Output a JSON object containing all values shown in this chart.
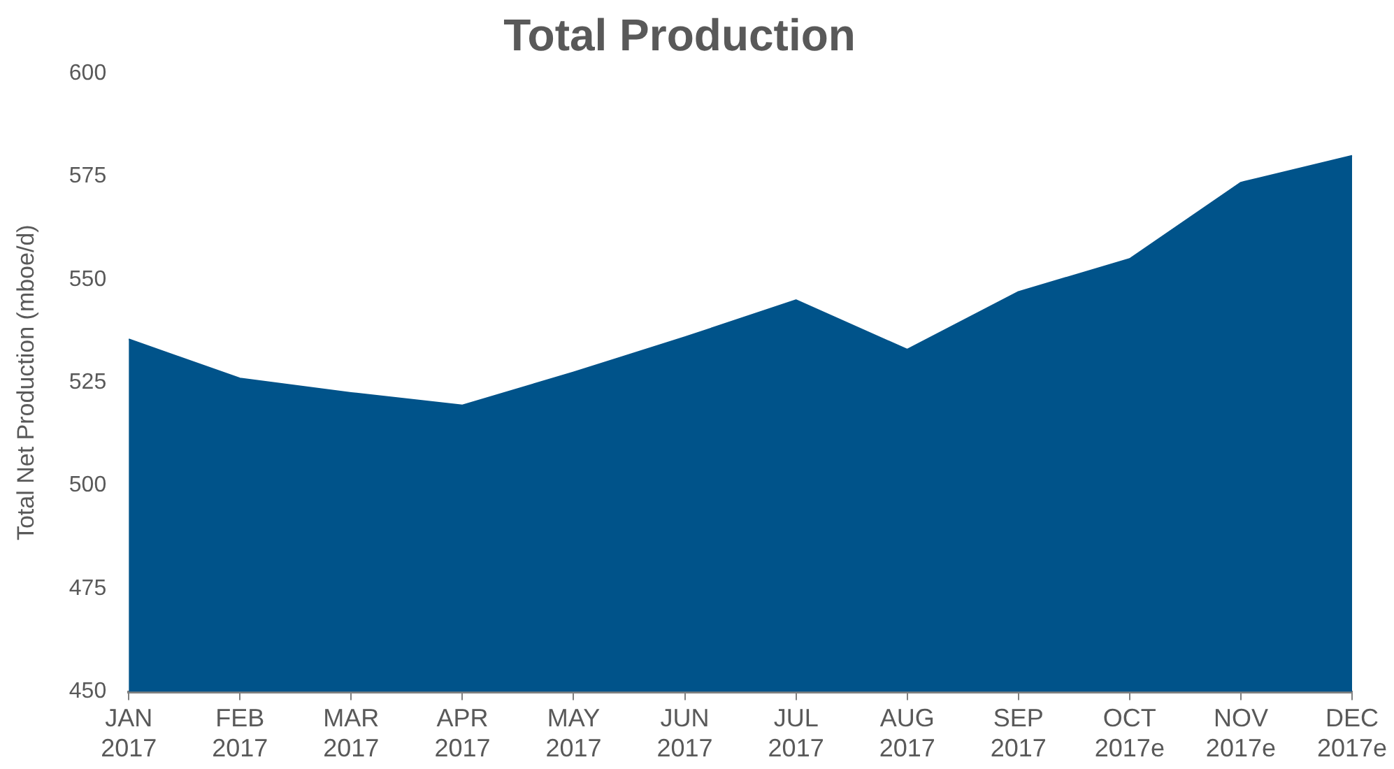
{
  "chart_data": {
    "type": "area",
    "title": "Total Production",
    "ylabel": "Total Net Production (mboe/d)",
    "categories": [
      "JAN\n2017",
      "FEB\n2017",
      "MAR\n2017",
      "APR\n2017",
      "MAY\n2017",
      "JUN\n2017",
      "JUL\n2017",
      "AUG\n2017",
      "SEP\n2017",
      "OCT\n2017e",
      "NOV\n2017e",
      "DEC\n2017e"
    ],
    "series": [
      {
        "color": "#00538a",
        "values": [
          535.5,
          526,
          522.5,
          519.5,
          527.5,
          536,
          545,
          533,
          547,
          555,
          573.5,
          580
        ]
      }
    ],
    "ylim": [
      450,
      600
    ],
    "yticks": [
      450,
      475,
      500,
      525,
      550,
      575,
      600
    ],
    "grid": false,
    "legend": false
  }
}
